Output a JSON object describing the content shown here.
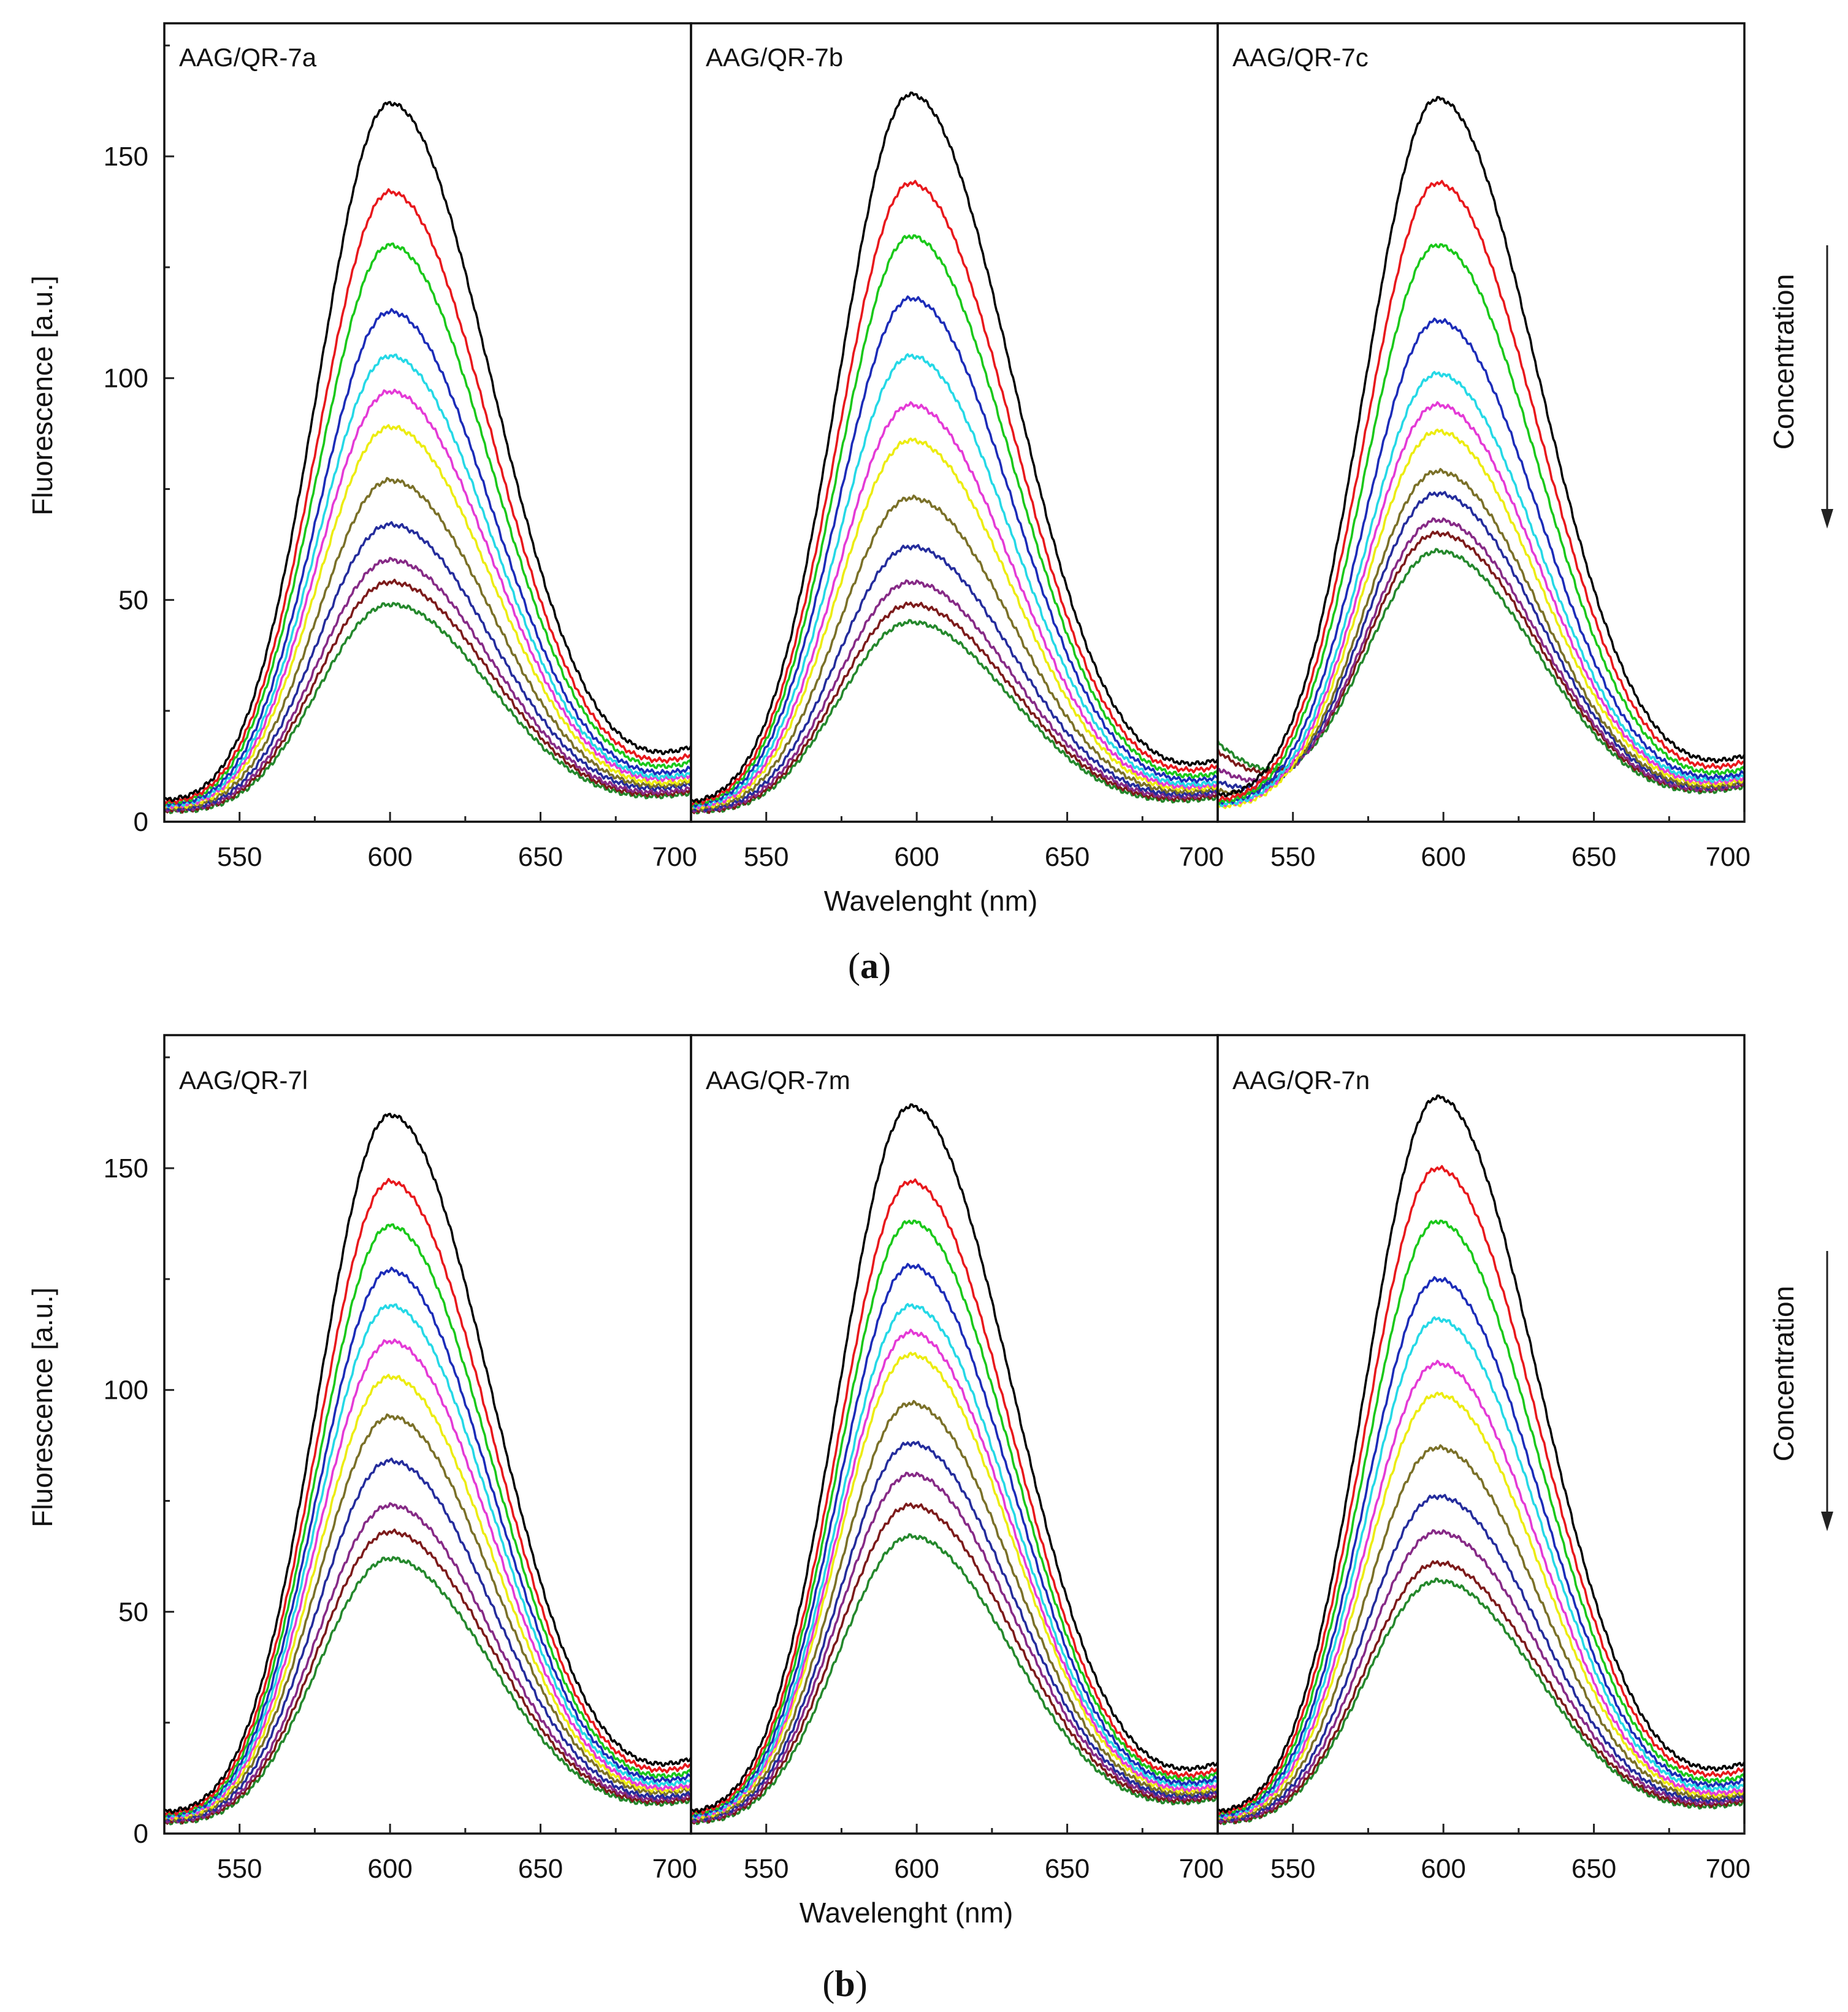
{
  "figure": {
    "captions": {
      "a": "(a)",
      "b": "(b)"
    },
    "caption_parts": {
      "a": [
        "(",
        "a",
        ")"
      ],
      "b": [
        "(",
        "b",
        ")"
      ]
    }
  },
  "chart_data": [
    {
      "type": "line",
      "group": "a",
      "xlabel": "Wavelenght (nm)",
      "ylabel": "Fluorescence [a.u.]",
      "side_annotation": "Concentration",
      "ylim": [
        0,
        180
      ],
      "yticks": [
        0,
        50,
        100,
        150
      ],
      "ytick_labels": [
        "0",
        "50",
        "100",
        "150"
      ],
      "xlim": [
        525,
        700
      ],
      "xticks": [
        550,
        600,
        650,
        700
      ],
      "xtick_labels": [
        "550",
        "600",
        "650",
        "700"
      ],
      "series_colors": [
        "#000000",
        "#e8181c",
        "#1ac81a",
        "#1c2cb8",
        "#25d8e6",
        "#e43ad6",
        "#ecec10",
        "#7a7028",
        "#242c9c",
        "#862a86",
        "#7c1a1a",
        "#24882c"
      ],
      "panels": [
        {
          "title": "AAG/QR-7a",
          "peak": 600,
          "peaks": [
            162,
            142,
            130,
            115,
            105,
            97,
            89,
            77,
            67,
            59,
            54,
            49
          ],
          "tails_right": [
            17,
            15,
            13.5,
            12,
            11,
            10.5,
            9.5,
            9,
            8.5,
            7.5,
            7,
            6.5
          ],
          "tails_left": [
            5,
            4.5,
            4.3,
            4,
            3.8,
            3.6,
            3.4,
            3.2,
            3,
            2.9,
            2.7,
            2.5
          ]
        },
        {
          "title": "AAG/QR-7b",
          "peak": 598,
          "peaks": [
            164,
            144,
            132,
            118,
            105,
            94,
            86,
            73,
            62,
            54,
            49,
            45
          ],
          "tails_right": [
            14,
            12.5,
            11,
            10,
            9,
            8.5,
            8,
            7.5,
            7,
            6.5,
            6,
            5.5
          ],
          "tails_left": [
            4.5,
            4.2,
            4,
            3.8,
            3.6,
            3.4,
            3.2,
            3,
            2.8,
            2.7,
            2.5,
            2.4
          ]
        },
        {
          "title": "AAG/QR-7c",
          "peak": 598,
          "peaks": [
            163,
            144,
            130,
            113,
            101,
            94,
            88,
            79,
            74,
            68,
            65,
            61
          ],
          "tails_right": [
            15,
            13.5,
            12,
            11,
            10.5,
            10,
            9.5,
            9,
            9,
            8.5,
            8.5,
            8
          ],
          "tails_left": [
            6,
            5,
            4.5,
            4.5,
            4,
            4,
            3.5,
            7,
            9,
            12,
            16,
            18
          ]
        }
      ]
    },
    {
      "type": "line",
      "group": "b",
      "xlabel": "Wavelenght (nm)",
      "ylabel": "Fluorescence [a.u.]",
      "side_annotation": "Concentration",
      "ylim": [
        0,
        180
      ],
      "yticks": [
        0,
        50,
        100,
        150
      ],
      "ytick_labels": [
        "0",
        "50",
        "100",
        "150"
      ],
      "xlim": [
        525,
        700
      ],
      "xticks": [
        550,
        600,
        650,
        700
      ],
      "xtick_labels": [
        "550",
        "600",
        "650",
        "700"
      ],
      "series_colors": [
        "#000000",
        "#e8181c",
        "#1ac81a",
        "#1c2cb8",
        "#25d8e6",
        "#e43ad6",
        "#ecec10",
        "#7a7028",
        "#242c9c",
        "#862a86",
        "#7c1a1a",
        "#24882c"
      ],
      "panels": [
        {
          "title": "AAG/QR-7l",
          "peak": 600,
          "peaks": [
            162,
            147,
            137,
            127,
            119,
            111,
            103,
            94,
            84,
            74,
            68,
            62
          ],
          "tails_right": [
            17,
            15.5,
            14,
            13,
            12,
            11,
            10.5,
            10,
            9,
            8.5,
            8,
            7.5
          ],
          "tails_left": [
            5,
            4.6,
            4.4,
            4.2,
            4,
            3.8,
            3.6,
            3.4,
            3.2,
            3,
            2.8,
            2.6
          ]
        },
        {
          "title": "AAG/QR-7m",
          "peak": 598,
          "peaks": [
            164,
            147,
            138,
            128,
            119,
            113,
            108,
            97,
            88,
            81,
            74,
            67
          ],
          "tails_right": [
            16,
            14.5,
            13.5,
            12.5,
            12,
            11,
            10.5,
            10,
            9.5,
            9,
            8.5,
            8
          ],
          "tails_left": [
            5,
            4.7,
            4.5,
            4.2,
            4,
            3.8,
            3.6,
            3.4,
            3.2,
            3,
            2.8,
            2.6
          ]
        },
        {
          "title": "AAG/QR-7n",
          "peak": 598,
          "peaks": [
            166,
            150,
            138,
            125,
            116,
            106,
            99,
            87,
            76,
            68,
            61,
            57
          ],
          "tails_right": [
            16,
            14.5,
            13,
            12,
            11,
            10,
            9.5,
            9,
            8.5,
            8,
            7.5,
            7
          ],
          "tails_left": [
            5,
            4.7,
            4.5,
            4.2,
            4,
            3.8,
            3.6,
            3.4,
            3.2,
            3,
            2.8,
            2.6
          ]
        }
      ]
    }
  ]
}
